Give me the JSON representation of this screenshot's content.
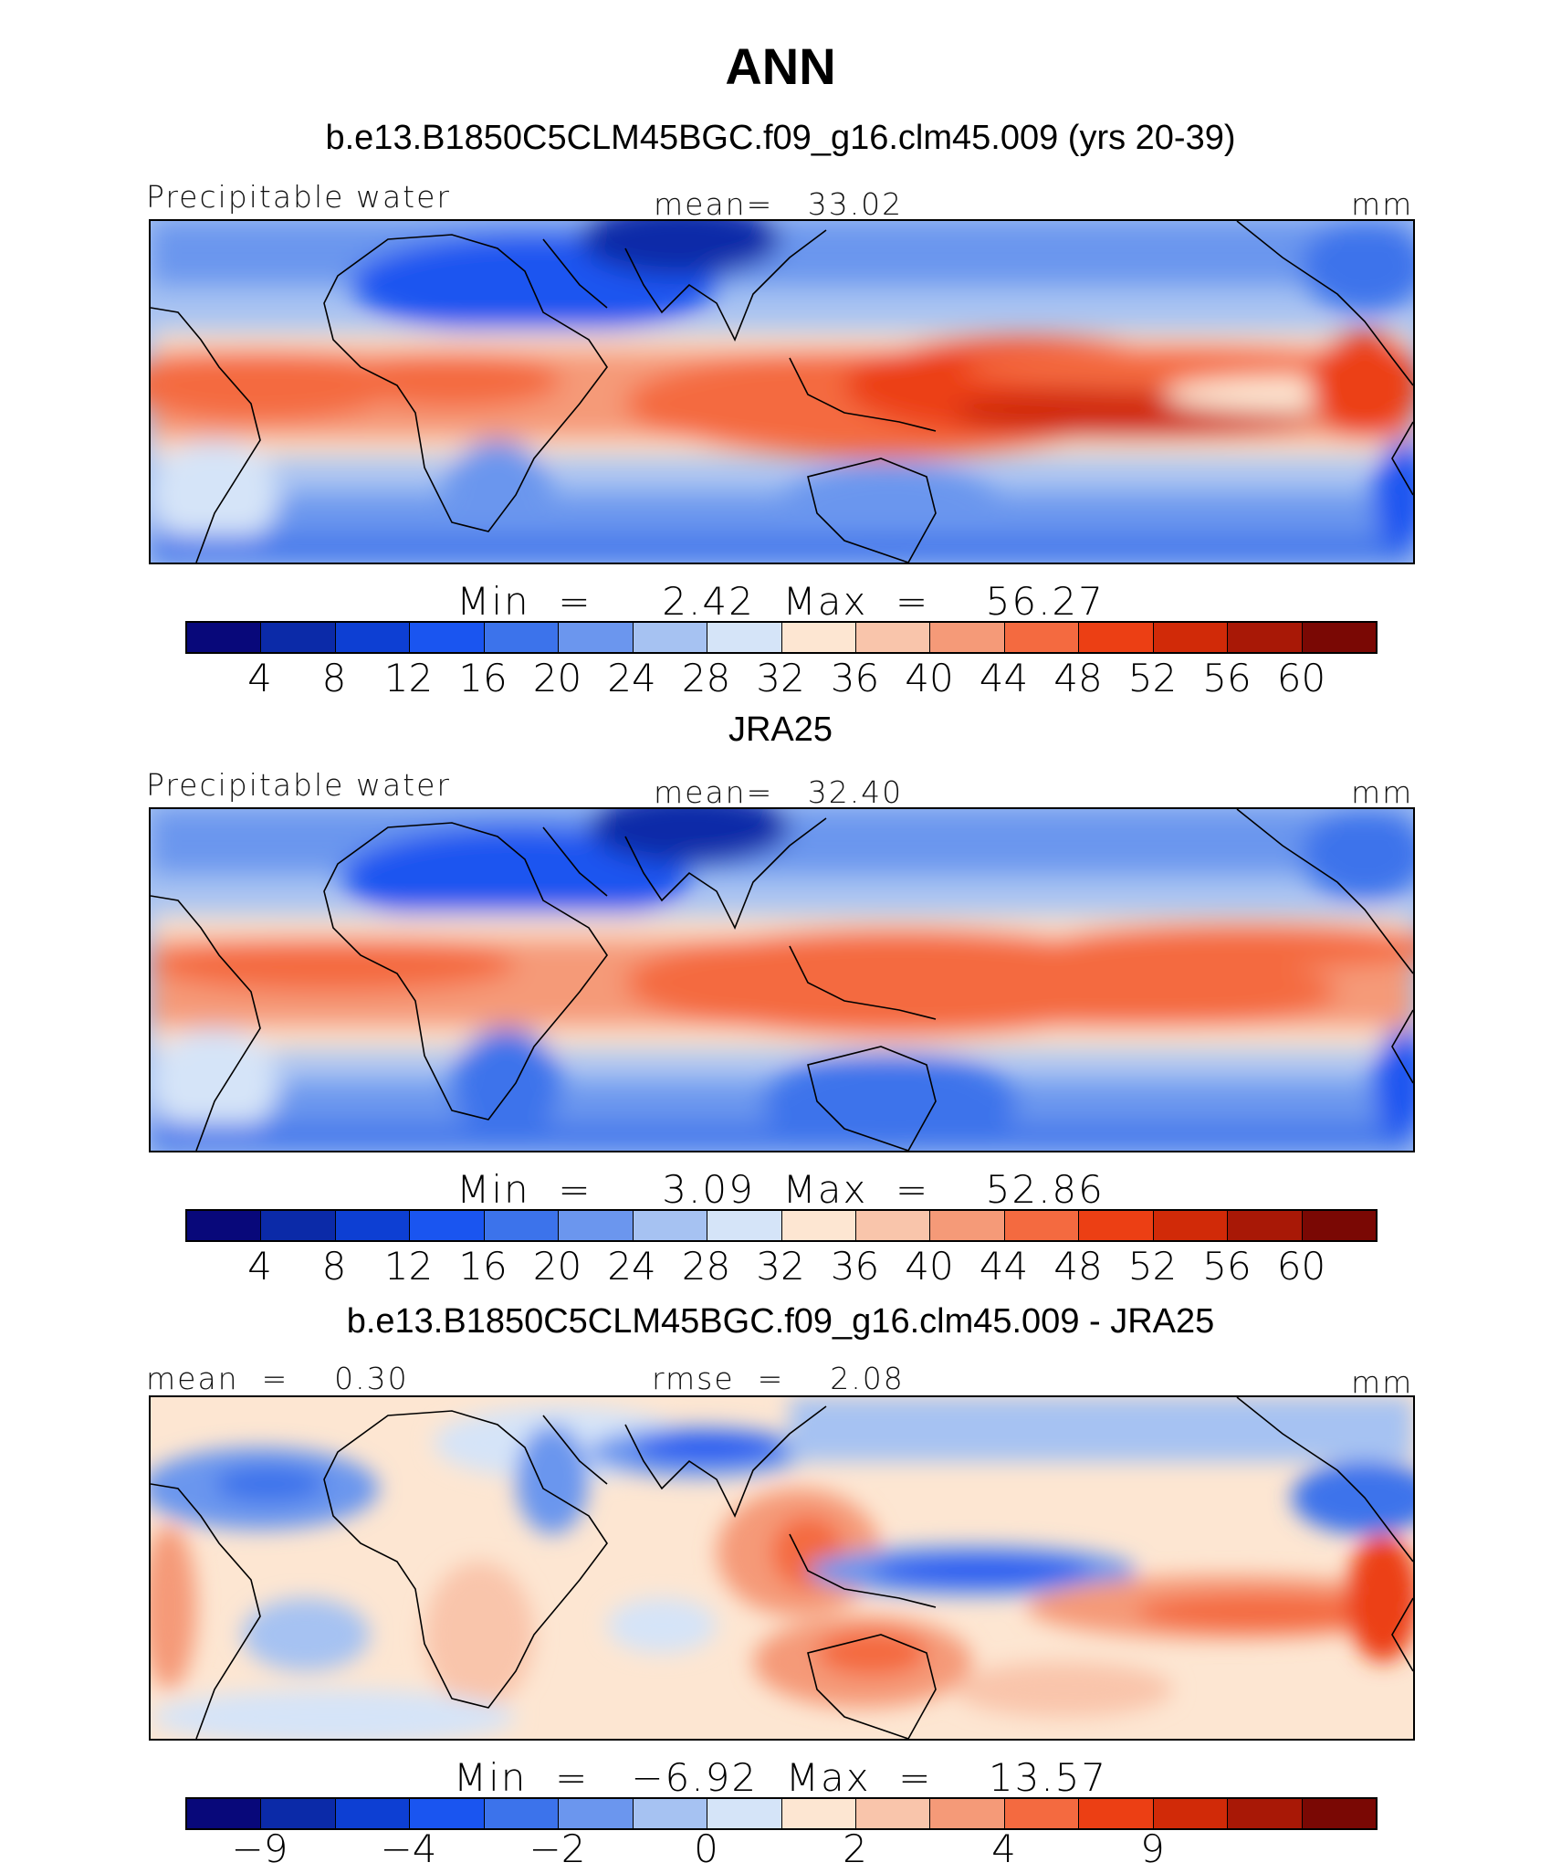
{
  "main_title": "ANN",
  "colors": {
    "model_scale": [
      "#08087a",
      "#0b2aa8",
      "#0d3fd3",
      "#1a55f0",
      "#3c73eb",
      "#6b96ee",
      "#a6c2f2",
      "#d5e4f8",
      "#fde6d2",
      "#f9c5ab",
      "#f59a78",
      "#f46a40",
      "#ec3f14",
      "#d12a08",
      "#a81806",
      "#7a0804"
    ],
    "diff_scale": [
      "#08087a",
      "#0b2aa8",
      "#0d3fd3",
      "#1a55f0",
      "#3c73eb",
      "#6b96ee",
      "#a6c2f2",
      "#d5e4f8",
      "#fde6d2",
      "#f9c5ab",
      "#f59a78",
      "#f46a40",
      "#ec3f14",
      "#d12a08",
      "#a81806",
      "#7a0804"
    ]
  },
  "chart_data": [
    {
      "type": "heatmap",
      "title": "b.e13.B1850C5CLM45BGC.f09_g16.clm45.009 (yrs 20-39)",
      "left_label": "Precipitable water",
      "center_label": "mean=   33.02",
      "units": "mm",
      "min_max_text": "Min  =     2.42  Max  =    56.27",
      "min": 2.42,
      "max": 56.27,
      "mean": 33.02,
      "levels": [
        "4",
        "8",
        "12",
        "16",
        "20",
        "24",
        "28",
        "32",
        "36",
        "40",
        "44",
        "48",
        "52",
        "56",
        "60"
      ]
    },
    {
      "type": "heatmap",
      "title": "JRA25",
      "left_label": "Precipitable water",
      "center_label": "mean=   32.40",
      "units": "mm",
      "min_max_text": "Min  =     3.09  Max  =    52.86",
      "min": 3.09,
      "max": 52.86,
      "mean": 32.4,
      "levels": [
        "4",
        "8",
        "12",
        "16",
        "20",
        "24",
        "28",
        "32",
        "36",
        "40",
        "44",
        "48",
        "52",
        "56",
        "60"
      ]
    },
    {
      "type": "heatmap",
      "title": "b.e13.B1850C5CLM45BGC.f09_g16.clm45.009 - JRA25",
      "left_label": "mean  =    0.30",
      "center_label": "rmse  =    2.08",
      "units": "mm",
      "min_max_text": "Min  =   −6.92  Max  =    13.57",
      "min": -6.92,
      "max": 13.57,
      "mean": 0.3,
      "rmse": 2.08,
      "levels": [
        "−9",
        "−4",
        "−2",
        "0",
        "2",
        "4",
        "9"
      ]
    }
  ]
}
